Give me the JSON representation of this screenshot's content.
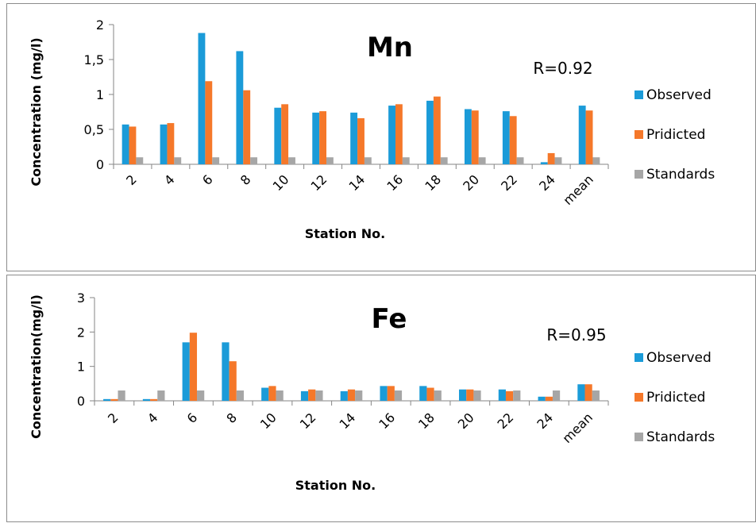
{
  "chart_data": [
    {
      "type": "bar",
      "title": "Mn",
      "annotation": "R=0.92",
      "xlabel": "Station No.",
      "ylabel": "Concentration   (mg/l)",
      "categories": [
        "2",
        "4",
        "6",
        "8",
        "10",
        "12",
        "14",
        "16",
        "18",
        "20",
        "22",
        "24",
        "mean"
      ],
      "ylim": [
        0,
        2
      ],
      "yticks": [
        0,
        0.5,
        1,
        1.5,
        2
      ],
      "ytick_labels": [
        "0",
        "0,5",
        "1",
        "1,5",
        "2"
      ],
      "legend_position": "right",
      "grid": false,
      "series": [
        {
          "name": "Observed",
          "color": "#1b9bd8",
          "values": [
            0.57,
            0.57,
            1.88,
            1.62,
            0.81,
            0.74,
            0.74,
            0.84,
            0.91,
            0.79,
            0.76,
            0.03,
            0.84
          ]
        },
        {
          "name": "Pridicted",
          "color": "#f5782a",
          "values": [
            0.54,
            0.59,
            1.19,
            1.06,
            0.86,
            0.76,
            0.66,
            0.86,
            0.97,
            0.77,
            0.69,
            0.16,
            0.77
          ]
        },
        {
          "name": "Standards",
          "color": "#a6a6a6",
          "values": [
            0.1,
            0.1,
            0.1,
            0.1,
            0.1,
            0.1,
            0.1,
            0.1,
            0.1,
            0.1,
            0.1,
            0.1,
            0.1
          ]
        }
      ]
    },
    {
      "type": "bar",
      "title": "Fe",
      "annotation": "R=0.95",
      "xlabel": "Station No.",
      "ylabel": "Concentration(mg/l)",
      "categories": [
        "2",
        "4",
        "6",
        "8",
        "10",
        "12",
        "14",
        "16",
        "18",
        "20",
        "22",
        "24",
        "mean"
      ],
      "ylim": [
        0,
        3
      ],
      "yticks": [
        0,
        1,
        2,
        3
      ],
      "ytick_labels": [
        "0",
        "1",
        "2",
        "3"
      ],
      "legend_position": "right",
      "grid": false,
      "series": [
        {
          "name": "Observed",
          "color": "#1b9bd8",
          "values": [
            0.05,
            0.05,
            1.7,
            1.7,
            0.38,
            0.28,
            0.28,
            0.43,
            0.43,
            0.33,
            0.33,
            0.12,
            0.48
          ]
        },
        {
          "name": "Pridicted",
          "color": "#f5782a",
          "values": [
            0.05,
            0.05,
            1.98,
            1.15,
            0.43,
            0.33,
            0.33,
            0.43,
            0.38,
            0.33,
            0.28,
            0.12,
            0.48
          ]
        },
        {
          "name": "Standards",
          "color": "#a6a6a6",
          "values": [
            0.3,
            0.3,
            0.3,
            0.3,
            0.3,
            0.3,
            0.3,
            0.3,
            0.3,
            0.3,
            0.3,
            0.3,
            0.3
          ]
        }
      ]
    }
  ]
}
